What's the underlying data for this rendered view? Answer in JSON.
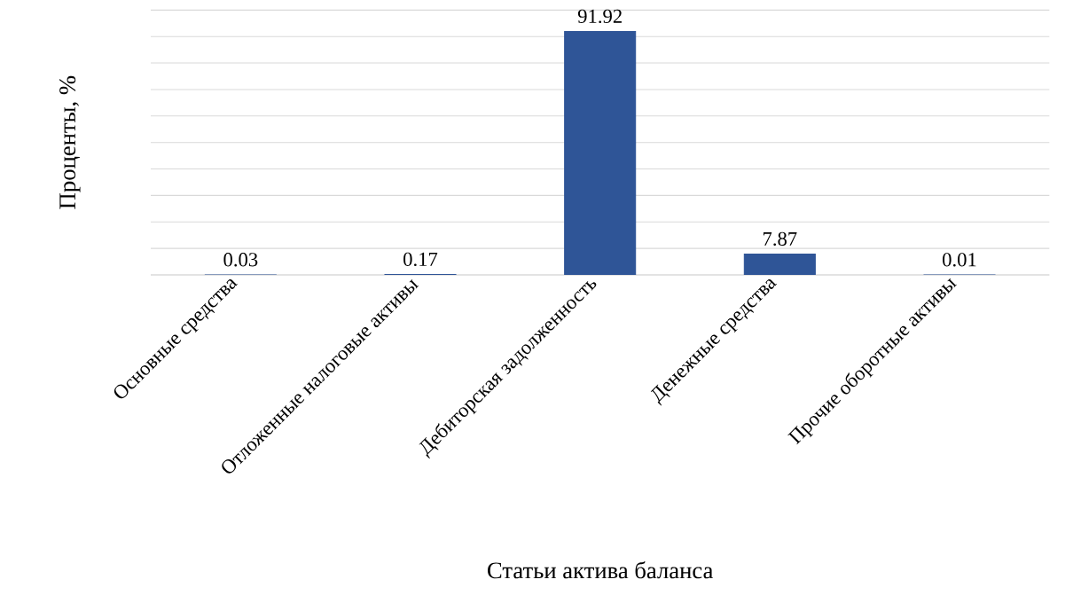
{
  "chart_data": {
    "type": "bar",
    "xlabel": "Статьи актива баланса",
    "ylabel": "Проценты, %",
    "categories": [
      "Основные средства",
      "Отложенные налоговые активы",
      "Дебиторская задолженность",
      "Денежные средства",
      "Прочие оборотные активы"
    ],
    "values": [
      0.03,
      0.17,
      91.92,
      7.87,
      0.01
    ],
    "color": "#2f5597",
    "ylim": [
      0,
      100
    ],
    "yticks": [
      {
        "value": 0,
        "label": null
      },
      {
        "value": 10,
        "label": null
      },
      {
        "value": 20,
        "label": null
      },
      {
        "value": 30,
        "label": null
      },
      {
        "value": 40,
        "label": null
      },
      {
        "value": 50,
        "label": null
      },
      {
        "value": 60,
        "label": null
      },
      {
        "value": 70,
        "label": null
      },
      {
        "value": 80,
        "label": null
      },
      {
        "value": 90,
        "label": null
      },
      {
        "value": 100,
        "label": null
      }
    ],
    "grid": "y",
    "tick_labels": "x",
    "data_labels": true
  }
}
